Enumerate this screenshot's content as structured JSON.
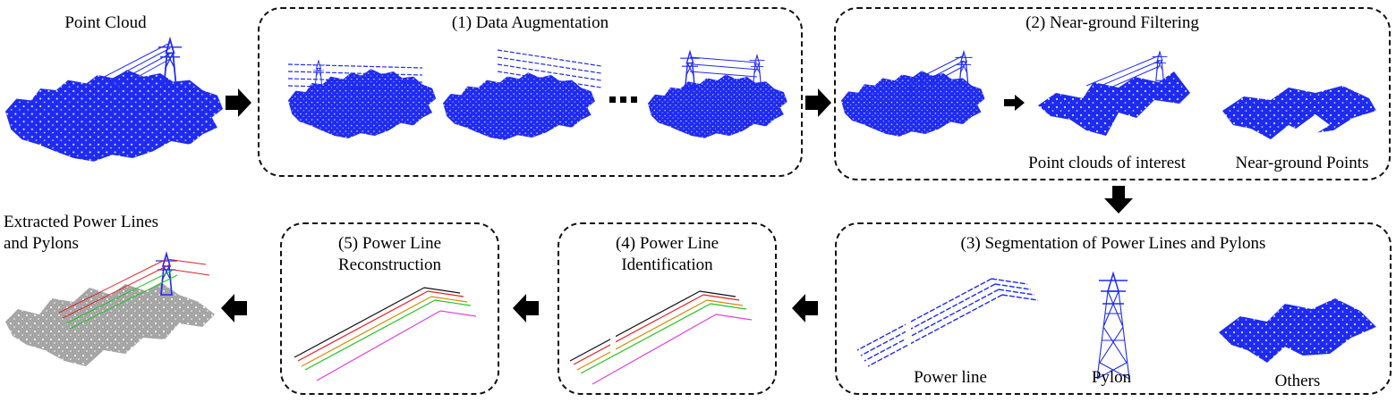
{
  "input": {
    "title": "Point Cloud"
  },
  "stages": [
    {
      "id": "augmentation",
      "title": "(1) Data Augmentation"
    },
    {
      "id": "filtering",
      "title": "(2) Near-ground Filtering",
      "outputs": [
        "Point clouds of interest",
        "Near-ground Points"
      ]
    },
    {
      "id": "segmentation",
      "title": "(3) Segmentation of Power Lines and Pylons",
      "classes": [
        "Power line",
        "Pylon",
        "Others"
      ]
    },
    {
      "id": "identification",
      "title_lines": [
        "(4) Power Line",
        "Identification"
      ]
    },
    {
      "id": "reconstruction",
      "title_lines": [
        "(5) Power Line",
        "Reconstruction"
      ]
    }
  ],
  "output": {
    "title_lines": [
      "Extracted Power Lines",
      "and Pylons"
    ]
  },
  "colors": {
    "point_cloud": "#1f2bf0",
    "extracted_ground": "#a6a6a6",
    "line_black": "#111111",
    "line_red": "#e0202a",
    "line_green": "#22c422",
    "line_orange": "#d48a00",
    "line_magenta": "#e040e0"
  }
}
